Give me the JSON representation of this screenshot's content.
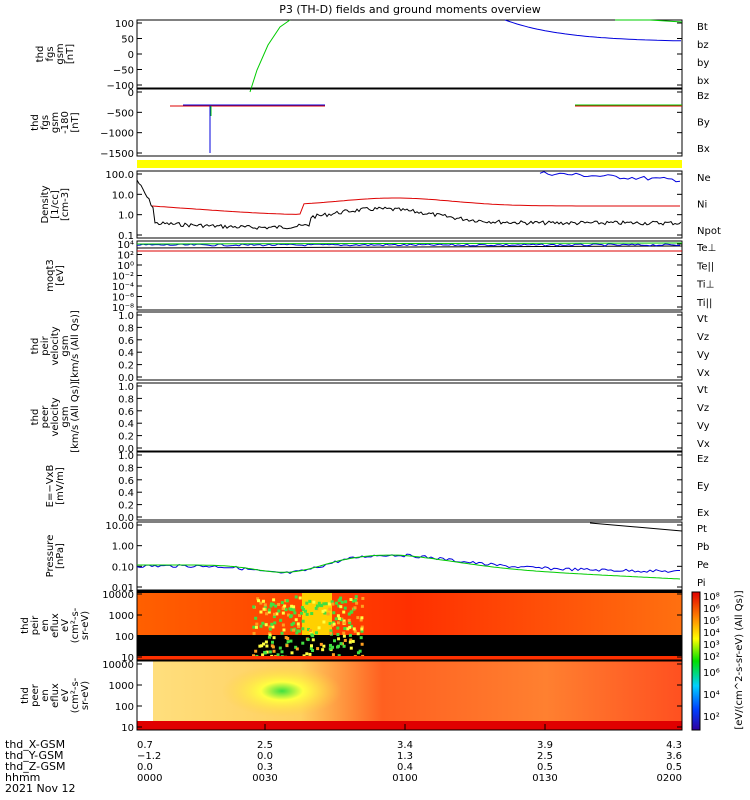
{
  "title": "P3 (TH-D) fields and ground moments overview",
  "colors": {
    "black": "#000000",
    "red": "#dd0000",
    "green": "#00cc00",
    "blue": "#0000dd",
    "yellow": "#ffff00"
  },
  "panels": [
    {
      "ylabel": [
        "thd",
        "fgs",
        "gsm",
        "[nT]"
      ],
      "ticks": [
        "100",
        "50",
        "0",
        "−50",
        "−100"
      ],
      "legend": [
        {
          "text": "Bt",
          "color": "#000000"
        },
        {
          "text": "bz",
          "color": "#dd0000"
        },
        {
          "text": "by",
          "color": "#00cc00"
        },
        {
          "text": "bx",
          "color": "#0000dd"
        }
      ]
    },
    {
      "ylabel": [
        "thd",
        "fgs",
        "gsm",
        "-180",
        "[nT]"
      ],
      "ticks": [
        "0",
        "−500",
        "−1000",
        "−1500"
      ],
      "legend": [
        {
          "text": "Bz",
          "color": "#dd0000"
        },
        {
          "text": "By",
          "color": "#00cc00"
        },
        {
          "text": "Bx",
          "color": "#0000dd"
        }
      ]
    },
    {
      "ylabel": [
        "Density",
        "[1/cc]",
        "[cm-3]"
      ],
      "ticks": [
        "100.0",
        "10.0",
        "1.0",
        "0.1"
      ],
      "legend": [
        {
          "text": "Ne",
          "color": "#dd0000"
        },
        {
          "text": "Ni",
          "color": "#000000"
        },
        {
          "text": "Npot",
          "color": "#0000dd"
        }
      ]
    },
    {
      "ylabel": [
        "moqt3",
        "[eV]"
      ],
      "ticks": [
        "10⁴",
        "10²",
        "10⁰",
        "10⁻²",
        "10⁻⁴",
        "10⁻⁶",
        "10⁻⁸"
      ],
      "legend": [
        {
          "text": "Te⊥",
          "color": "#dd0000"
        },
        {
          "text": "Te||",
          "color": "#000000"
        },
        {
          "text": "Ti⊥",
          "color": "#0000dd"
        },
        {
          "text": "Ti||",
          "color": "#00cc00"
        }
      ]
    },
    {
      "ylabel": [
        "thd",
        "peir",
        "velocity",
        "gsm",
        "[km/s (All Qs)]"
      ],
      "ticks": [
        "1.0",
        "0.8",
        "0.6",
        "0.4",
        "0.2",
        "0.0"
      ],
      "legend": [
        {
          "text": "Vt",
          "color": "#000000"
        },
        {
          "text": "Vz",
          "color": "#dd0000"
        },
        {
          "text": "Vy",
          "color": "#00cc00"
        },
        {
          "text": "Vx",
          "color": "#0000dd"
        }
      ]
    },
    {
      "ylabel": [
        "thd",
        "peer",
        "velocity",
        "gsm",
        "[km/s (All Qs)]"
      ],
      "ticks": [
        "1.0",
        "0.8",
        "0.6",
        "0.4",
        "0.2",
        "0.0"
      ],
      "legend": [
        {
          "text": "Vt",
          "color": "#000000"
        },
        {
          "text": "Vz",
          "color": "#dd0000"
        },
        {
          "text": "Vy",
          "color": "#00cc00"
        },
        {
          "text": "Vx",
          "color": "#0000dd"
        }
      ]
    },
    {
      "ylabel": [
        "E=−VxB",
        "[mV/m]"
      ],
      "ticks": [
        "1.0",
        "0.8",
        "0.6",
        "0.4",
        "0.2",
        "0.0"
      ],
      "legend": [
        {
          "text": "Ez",
          "color": "#dd0000"
        },
        {
          "text": "Ey",
          "color": "#00cc00"
        },
        {
          "text": "Ex",
          "color": "#0000dd"
        }
      ]
    },
    {
      "ylabel": [
        "Pressure",
        "[nPa]"
      ],
      "ticks": [
        "10.00",
        "1.00",
        "0.10",
        "0.01"
      ],
      "legend": [
        {
          "text": "Pt",
          "color": "#000000"
        },
        {
          "text": "Pb",
          "color": "#dd0000"
        },
        {
          "text": "Pe",
          "color": "#00cc00"
        },
        {
          "text": "Pi",
          "color": "#0000dd"
        }
      ]
    },
    {
      "ylabel": [
        "thd",
        "peir",
        "en",
        "eflux",
        "eV",
        "(cm²-s-",
        "sr-eV)"
      ],
      "ticks": [
        "10000",
        "1000",
        "100",
        "10"
      ]
    },
    {
      "ylabel": [
        "thd",
        "peer",
        "en",
        "eflux",
        "eV",
        "(cm²-s-",
        "sr-eV)"
      ],
      "ticks": [
        "10000",
        "1000",
        "100",
        "10"
      ]
    }
  ],
  "colorbar": {
    "label": "[eV/(cm^2-s-sr-eV) (All Qs)]",
    "upper_ticks": [
      "10⁸",
      "10⁶",
      "10⁵",
      "10⁴",
      "10³",
      "10²"
    ],
    "lower_ticks": [
      "10⁶",
      "10⁴",
      "10²"
    ]
  },
  "x_ticks": [
    {
      "hhmm": "0000",
      "x": "0.7",
      "y": "−1.2",
      "z": "0.0"
    },
    {
      "hhmm": "0030",
      "x": "2.5",
      "y": "0.0",
      "z": "0.3"
    },
    {
      "hhmm": "0100",
      "x": "3.4",
      "y": "1.3",
      "z": "0.4"
    },
    {
      "hhmm": "0130",
      "x": "3.9",
      "y": "2.5",
      "z": "0.5"
    },
    {
      "hhmm": "0200",
      "x": "4.3",
      "y": "3.6",
      "z": "0.5"
    }
  ],
  "bottom_labels": {
    "x": "thd_X-GSM",
    "y": "thd_Y-GSM",
    "z": "thd_Z-GSM",
    "time": "hhmm",
    "date": "2021 Nov 12"
  }
}
